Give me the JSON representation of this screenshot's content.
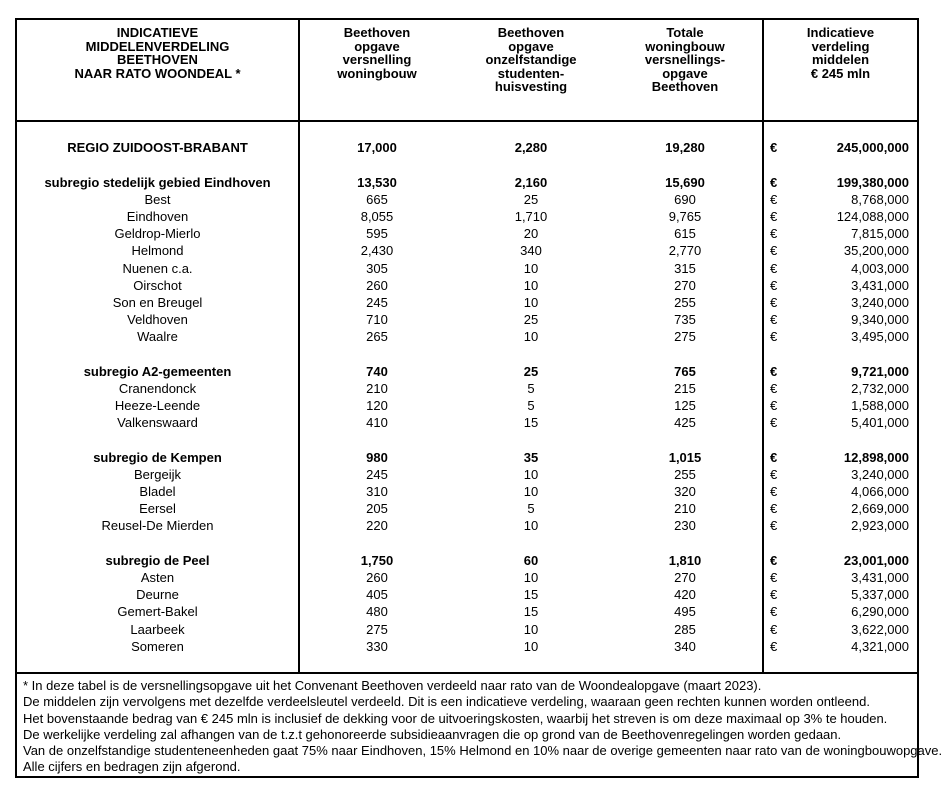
{
  "page": {
    "background_color": "#ffffff",
    "text_color": "#000000",
    "border_color": "#000000"
  },
  "table": {
    "euro_symbol": "€",
    "headers": {
      "label": "INDICATIEVE\nMIDDELENVERDELING\nBEETHOVEN\nNAAR RATO WOONDEAL *",
      "versnelling": "Beethoven\nopgave\nversnelling\nwoningbouw",
      "studenten": "Beethoven\nopgave\nonzelfstandige\nstudenten-\nhuisvesting",
      "totale": "Totale\nwoningbouw\nversnellings-\nopgave\nBeethoven",
      "middelen": "Indicatieve\nverdeling\nmiddelen\n€ 245 mln"
    },
    "rows": [
      {
        "style": "spacer"
      },
      {
        "style": "region",
        "name": "REGIO ZUIDOOST-BRABANT",
        "versnelling": "17,000",
        "studenten": "2,280",
        "totale": "19,280",
        "middelen": "245,000,000"
      },
      {
        "style": "spacer"
      },
      {
        "style": "subregion",
        "name": "subregio stedelijk gebied Eindhoven",
        "versnelling": "13,530",
        "studenten": "2,160",
        "totale": "15,690",
        "middelen": "199,380,000"
      },
      {
        "style": "muni",
        "name": "Best",
        "versnelling": "665",
        "studenten": "25",
        "totale": "690",
        "middelen": "8,768,000"
      },
      {
        "style": "muni",
        "name": "Eindhoven",
        "versnelling": "8,055",
        "studenten": "1,710",
        "totale": "9,765",
        "middelen": "124,088,000"
      },
      {
        "style": "muni",
        "name": "Geldrop-Mierlo",
        "versnelling": "595",
        "studenten": "20",
        "totale": "615",
        "middelen": "7,815,000"
      },
      {
        "style": "muni",
        "name": "Helmond",
        "versnelling": "2,430",
        "studenten": "340",
        "totale": "2,770",
        "middelen": "35,200,000"
      },
      {
        "style": "muni",
        "name": "Nuenen c.a.",
        "versnelling": "305",
        "studenten": "10",
        "totale": "315",
        "middelen": "4,003,000"
      },
      {
        "style": "muni",
        "name": "Oirschot",
        "versnelling": "260",
        "studenten": "10",
        "totale": "270",
        "middelen": "3,431,000"
      },
      {
        "style": "muni",
        "name": "Son en Breugel",
        "versnelling": "245",
        "studenten": "10",
        "totale": "255",
        "middelen": "3,240,000"
      },
      {
        "style": "muni",
        "name": "Veldhoven",
        "versnelling": "710",
        "studenten": "25",
        "totale": "735",
        "middelen": "9,340,000"
      },
      {
        "style": "muni",
        "name": "Waalre",
        "versnelling": "265",
        "studenten": "10",
        "totale": "275",
        "middelen": "3,495,000"
      },
      {
        "style": "spacer"
      },
      {
        "style": "subregion",
        "name": "subregio A2-gemeenten",
        "versnelling": "740",
        "studenten": "25",
        "totale": "765",
        "middelen": "9,721,000"
      },
      {
        "style": "muni",
        "name": "Cranendonck",
        "versnelling": "210",
        "studenten": "5",
        "totale": "215",
        "middelen": "2,732,000"
      },
      {
        "style": "muni",
        "name": "Heeze-Leende",
        "versnelling": "120",
        "studenten": "5",
        "totale": "125",
        "middelen": "1,588,000"
      },
      {
        "style": "muni",
        "name": "Valkenswaard",
        "versnelling": "410",
        "studenten": "15",
        "totale": "425",
        "middelen": "5,401,000"
      },
      {
        "style": "spacer"
      },
      {
        "style": "subregion",
        "name": "subregio de Kempen",
        "versnelling": "980",
        "studenten": "35",
        "totale": "1,015",
        "middelen": "12,898,000"
      },
      {
        "style": "muni",
        "name": "Bergeijk",
        "versnelling": "245",
        "studenten": "10",
        "totale": "255",
        "middelen": "3,240,000"
      },
      {
        "style": "muni",
        "name": "Bladel",
        "versnelling": "310",
        "studenten": "10",
        "totale": "320",
        "middelen": "4,066,000"
      },
      {
        "style": "muni",
        "name": "Eersel",
        "versnelling": "205",
        "studenten": "5",
        "totale": "210",
        "middelen": "2,669,000"
      },
      {
        "style": "muni",
        "name": "Reusel-De Mierden",
        "versnelling": "220",
        "studenten": "10",
        "totale": "230",
        "middelen": "2,923,000"
      },
      {
        "style": "spacer"
      },
      {
        "style": "subregion",
        "name": "subregio de Peel",
        "versnelling": "1,750",
        "studenten": "60",
        "totale": "1,810",
        "middelen": "23,001,000"
      },
      {
        "style": "muni",
        "name": "Asten",
        "versnelling": "260",
        "studenten": "10",
        "totale": "270",
        "middelen": "3,431,000"
      },
      {
        "style": "muni",
        "name": "Deurne",
        "versnelling": "405",
        "studenten": "15",
        "totale": "420",
        "middelen": "5,337,000"
      },
      {
        "style": "muni",
        "name": "Gemert-Bakel",
        "versnelling": "480",
        "studenten": "15",
        "totale": "495",
        "middelen": "6,290,000"
      },
      {
        "style": "muni",
        "name": "Laarbeek",
        "versnelling": "275",
        "studenten": "10",
        "totale": "285",
        "middelen": "3,622,000"
      },
      {
        "style": "muni",
        "name": "Someren",
        "versnelling": "330",
        "studenten": "10",
        "totale": "340",
        "middelen": "4,321,000"
      },
      {
        "style": "spacer"
      }
    ]
  },
  "footnotes": [
    "* In deze tabel is de versnellingsopgave uit het Convenant Beethoven verdeeld naar rato van de Woondealopgave (maart 2023).",
    "De middelen zijn vervolgens met dezelfde verdeelsleutel verdeeld. Dit is een indicatieve verdeling, waaraan geen rechten kunnen worden ontleend.",
    "Het bovenstaande bedrag van € 245 mln is inclusief de dekking voor de uitvoeringskosten, waarbij het streven is om deze maximaal op 3% te houden.",
    "De werkelijke verdeling zal afhangen van de t.z.t gehonoreerde subsidieaanvragen die op grond van de Beethovenregelingen worden gedaan.",
    "Van de onzelfstandige studenteneenheden gaat 75% naar Eindhoven, 15% Helmond en 10% naar de overige gemeenten naar rato van de woningbouwopgave.",
    "Alle cijfers en bedragen zijn afgerond."
  ]
}
